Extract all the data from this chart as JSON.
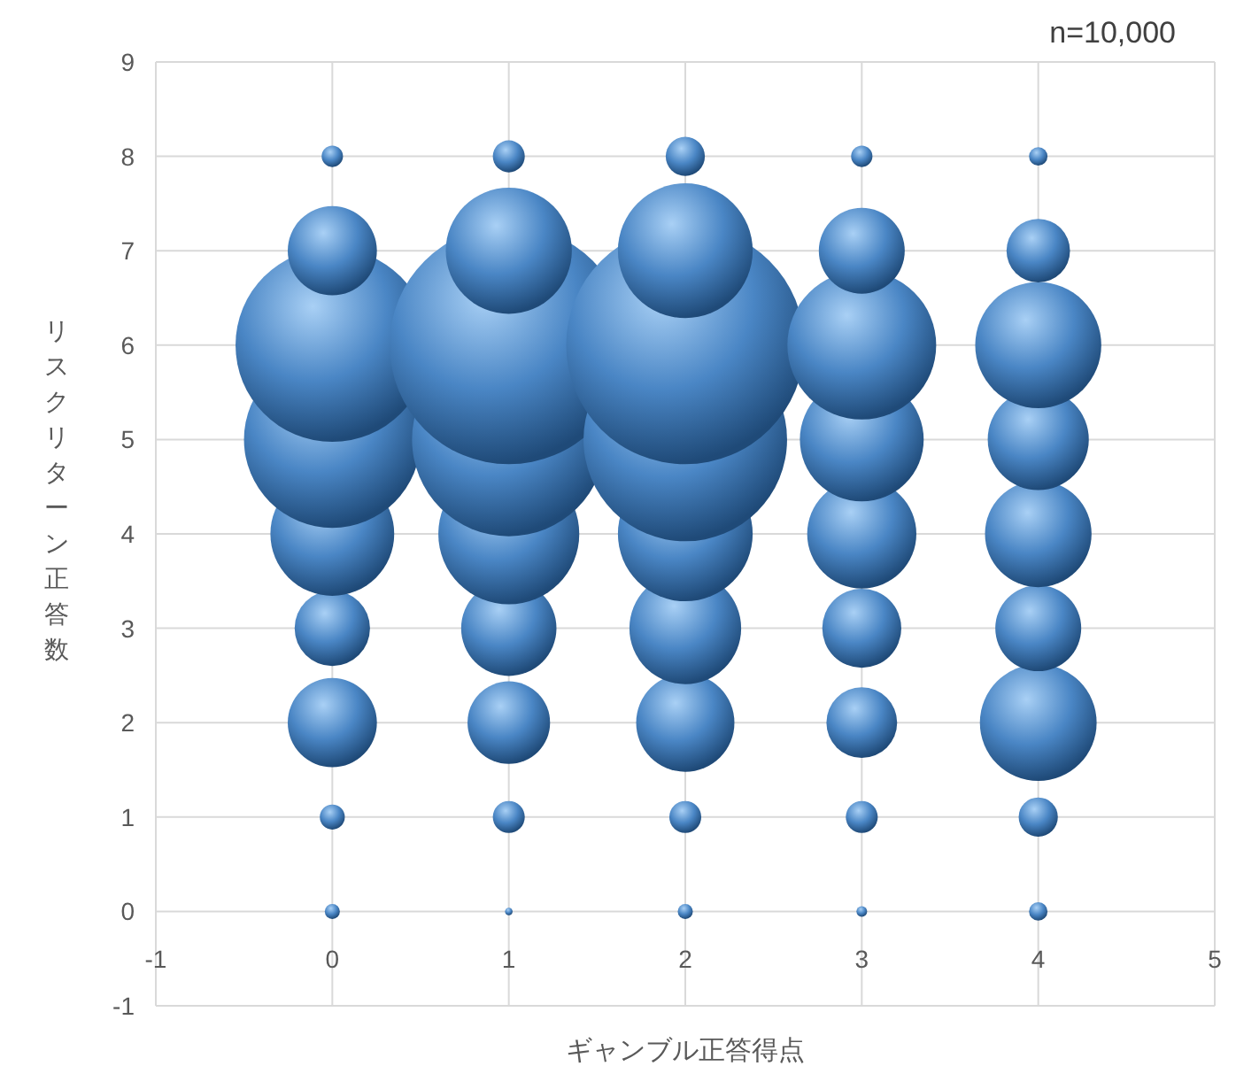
{
  "chart_data": {
    "type": "bubble",
    "xlabel": "ギャンブル正答得点",
    "ylabel": "リスクリターン正答数",
    "annotations": [
      "n=10,000"
    ],
    "xlim": [
      -1,
      5
    ],
    "ylim": [
      -1,
      9
    ],
    "xticks": [
      -1,
      0,
      1,
      2,
      3,
      4,
      5
    ],
    "yticks": [
      -1,
      0,
      1,
      2,
      3,
      4,
      5,
      6,
      7,
      8,
      9
    ],
    "grid": true,
    "series": [
      {
        "color": "#4a86c5",
        "x": [
          0,
          0,
          0,
          0,
          0,
          0,
          0,
          0,
          0,
          1,
          1,
          1,
          1,
          1,
          1,
          1,
          1,
          1,
          2,
          2,
          2,
          2,
          2,
          2,
          2,
          2,
          2,
          3,
          3,
          3,
          3,
          3,
          3,
          3,
          3,
          3,
          4,
          4,
          4,
          4,
          4,
          4,
          4,
          4,
          4
        ],
        "values": [
          0,
          1,
          2,
          3,
          4,
          5,
          6,
          7,
          8,
          0,
          1,
          2,
          3,
          4,
          5,
          6,
          7,
          8,
          0,
          1,
          2,
          3,
          4,
          5,
          6,
          7,
          8,
          0,
          1,
          2,
          3,
          4,
          5,
          6,
          7,
          8,
          0,
          1,
          2,
          3,
          4,
          5,
          6,
          7,
          8
        ],
        "sizes": [
          0.004,
          0.011,
          0.14,
          0.1,
          0.27,
          0.55,
          0.66,
          0.14,
          0.008,
          0.001,
          0.018,
          0.12,
          0.16,
          0.35,
          0.66,
          1,
          0.28,
          0.018,
          0.004,
          0.018,
          0.17,
          0.22,
          0.32,
          0.73,
          1,
          0.32,
          0.027,
          0.002,
          0.018,
          0.088,
          0.11,
          0.21,
          0.27,
          0.39,
          0.13,
          0.008,
          0.006,
          0.027,
          0.24,
          0.13,
          0.2,
          0.18,
          0.28,
          0.071,
          0.006
        ]
      }
    ]
  }
}
